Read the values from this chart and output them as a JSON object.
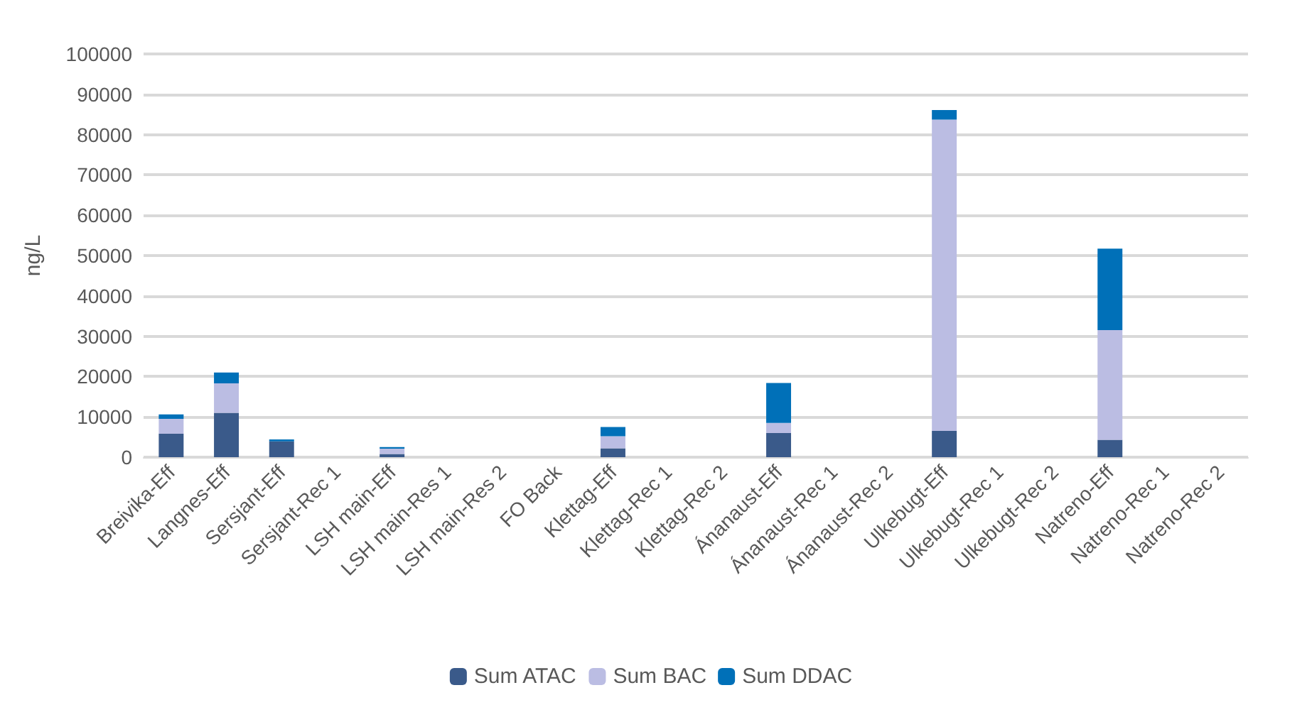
{
  "chart_data": {
    "type": "bar",
    "stacked": true,
    "ylabel": "ng/L",
    "categories": [
      "Breivika-Eff",
      "Langnes-Eff",
      "Sersjant-Eff",
      "Sersjant-Rec 1",
      "LSH main-Eff",
      "LSH main-Res 1",
      "LSH main-Res 2",
      "FO Back",
      "Klettag-Eff",
      "Klettag-Rec 1",
      "Klettag-Rec 2",
      "Ánanaust-Eff",
      "Ánanaust-Rec 1",
      "Ánanaust-Rec 2",
      "Ulkebugt-Eff",
      "Ulkebugt-Rec 1",
      "Ulkebugt-Rec 2",
      "Natreno-Eff",
      "Natreno-Rec 1",
      "Natreno-Rec 2"
    ],
    "series": [
      {
        "name": "Sum ATAC",
        "color": "#3a5a8a",
        "values": [
          5800,
          11000,
          3900,
          null,
          800,
          null,
          null,
          null,
          2200,
          null,
          null,
          6000,
          null,
          null,
          6500,
          null,
          null,
          4300,
          null,
          null
        ]
      },
      {
        "name": "Sum BAC",
        "color": "#bbbde3",
        "values": [
          3700,
          7300,
          null,
          null,
          1300,
          null,
          null,
          null,
          3000,
          null,
          null,
          2500,
          null,
          null,
          77200,
          null,
          null,
          27200,
          null,
          null
        ]
      },
      {
        "name": "Sum DDAC",
        "color": "#0070b8",
        "values": [
          1100,
          2700,
          500,
          null,
          400,
          null,
          null,
          null,
          2300,
          null,
          null,
          9900,
          null,
          null,
          2400,
          null,
          null,
          20200,
          null,
          null
        ]
      }
    ],
    "ylim": [
      0,
      100000
    ],
    "yticks": [
      0,
      10000,
      20000,
      30000,
      40000,
      50000,
      60000,
      70000,
      80000,
      90000,
      100000
    ],
    "grid": "y",
    "legend": "bottom"
  }
}
